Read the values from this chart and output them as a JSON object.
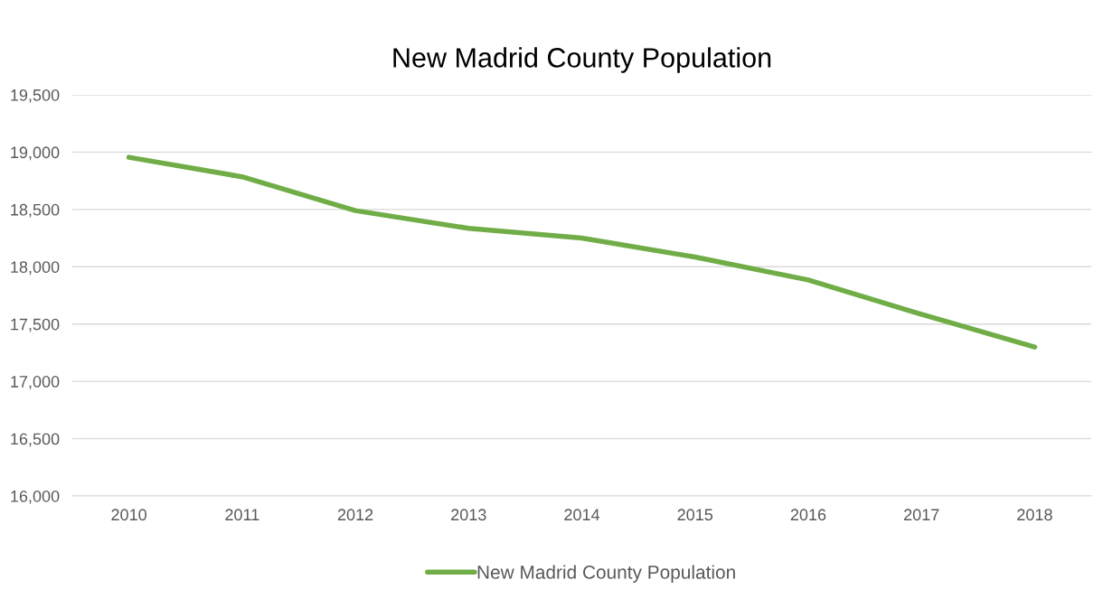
{
  "chart_data": {
    "type": "line",
    "title": "New Madrid County Population",
    "categories": [
      "2010",
      "2011",
      "2012",
      "2013",
      "2014",
      "2015",
      "2016",
      "2017",
      "2018"
    ],
    "series": [
      {
        "name": "New Madrid County Population",
        "color": "#70ad47",
        "values": [
          18955,
          18785,
          18490,
          18335,
          18250,
          18085,
          17885,
          17585,
          17300
        ]
      }
    ],
    "ylim": [
      16000,
      19500
    ],
    "yticks": [
      {
        "value": 16000,
        "label": "16,000"
      },
      {
        "value": 16500,
        "label": "16,500"
      },
      {
        "value": 17000,
        "label": "17,000"
      },
      {
        "value": 17500,
        "label": "17,500"
      },
      {
        "value": 18000,
        "label": "18,000"
      },
      {
        "value": 18500,
        "label": "18,500"
      },
      {
        "value": 19000,
        "label": "19,000"
      },
      {
        "value": 19500,
        "label": "19,500"
      }
    ],
    "grid": "y",
    "legend": "bottom",
    "marker": "none",
    "line_style": "solid"
  }
}
